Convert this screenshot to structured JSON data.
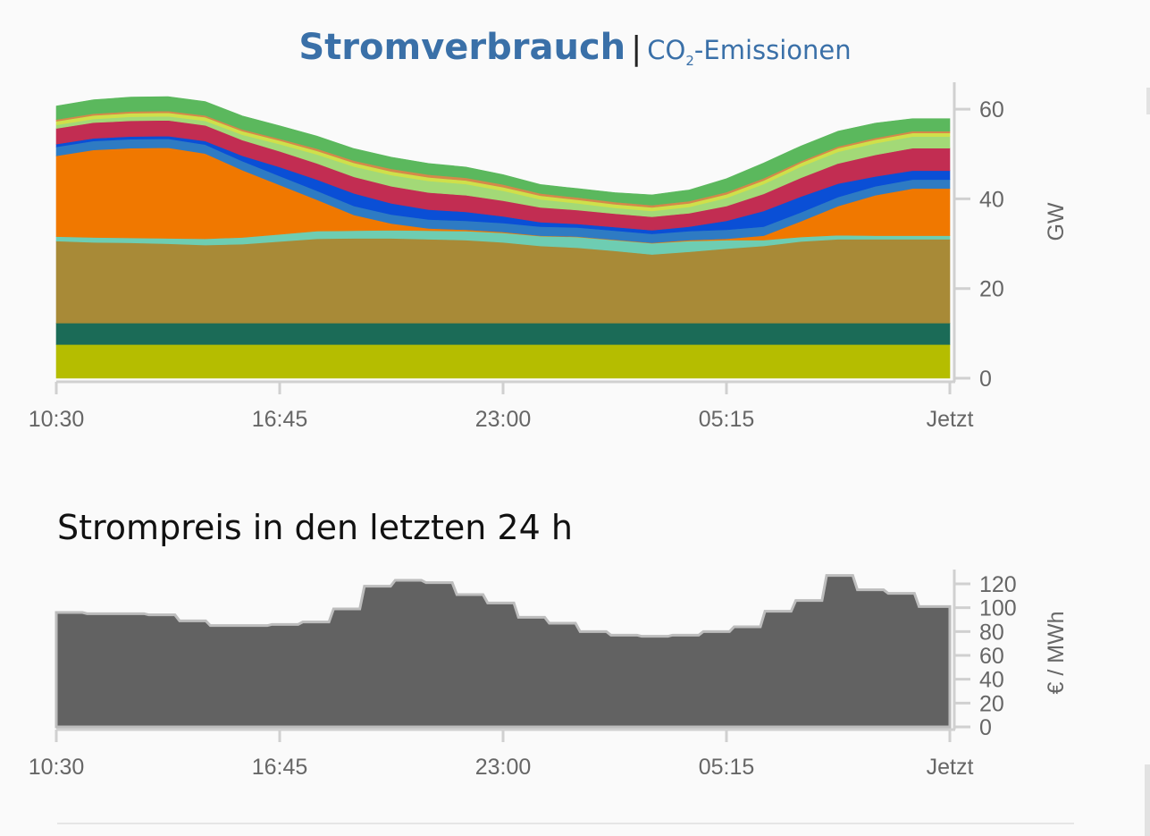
{
  "tabs": {
    "consumption_label": "Stromverbrauch",
    "separator": "|",
    "emissions_prefix": "CO",
    "emissions_sub": "2",
    "emissions_suffix": "-Emissionen"
  },
  "price_section": {
    "title": "Strompreis in den letzten 24 h"
  },
  "chart_data": [
    {
      "type": "area",
      "stacked": true,
      "title": "Stromverbrauch",
      "xlabel": "",
      "ylabel": "GW",
      "x_ticks": [
        "10:30",
        "16:45",
        "23:00",
        "05:15",
        "Jetzt"
      ],
      "y_ticks": [
        0,
        20,
        40,
        60
      ],
      "ylim": [
        0,
        66
      ],
      "grid": false,
      "legend": "none",
      "x": [
        0,
        2,
        4,
        6,
        8,
        10,
        12,
        14,
        16,
        18,
        20,
        22,
        24,
        26,
        28,
        30,
        32,
        34,
        36,
        38,
        40,
        42,
        44,
        46,
        48
      ],
      "series": [
        {
          "color": "#b5bd00",
          "values": [
            7.5,
            7.5,
            7.5,
            7.5,
            7.5,
            7.5,
            7.5,
            7.5,
            7.5,
            7.5,
            7.5,
            7.5,
            7.5,
            7.5,
            7.5,
            7.5,
            7.5,
            7.5,
            7.5,
            7.5,
            7.5,
            7.5,
            7.5,
            7.5,
            7.5
          ]
        },
        {
          "color": "#1b6b57",
          "values": [
            4.8,
            4.8,
            4.8,
            4.8,
            4.8,
            4.8,
            4.8,
            4.8,
            4.8,
            4.8,
            4.8,
            4.8,
            4.8,
            4.8,
            4.8,
            4.8,
            4.8,
            4.8,
            4.8,
            4.8,
            4.8,
            4.8,
            4.8,
            4.8,
            4.8
          ]
        },
        {
          "color": "#a88a37",
          "values": [
            18.3,
            18.0,
            17.9,
            17.7,
            17.4,
            17.6,
            18.2,
            18.8,
            18.9,
            18.9,
            18.7,
            18.5,
            18.0,
            17.2,
            16.8,
            16.1,
            15.3,
            15.9,
            16.6,
            17.2,
            18.2,
            18.7,
            18.7,
            18.7,
            18.7
          ]
        },
        {
          "color": "#6ecdb2",
          "values": [
            1.0,
            1.1,
            1.1,
            1.2,
            1.4,
            1.5,
            1.6,
            1.7,
            1.7,
            1.8,
            1.9,
            2.0,
            2.1,
            2.2,
            2.4,
            2.4,
            2.5,
            2.4,
            1.9,
            1.3,
            1.0,
            0.9,
            0.8,
            0.8,
            0.8
          ]
        },
        {
          "color": "#f07800",
          "values": [
            18.0,
            19.5,
            20.0,
            20.2,
            19.0,
            15.0,
            11.0,
            7.0,
            3.5,
            1.5,
            0.5,
            0.3,
            0.2,
            0.1,
            0.1,
            0.1,
            0.1,
            0.2,
            0.3,
            1.0,
            3.5,
            6.5,
            9.0,
            10.5,
            10.5
          ]
        },
        {
          "color": "#2e7bc3",
          "values": [
            2.0,
            2.0,
            2.0,
            2.0,
            2.0,
            2.0,
            2.0,
            2.0,
            2.0,
            2.0,
            2.0,
            2.0,
            2.0,
            2.0,
            2.0,
            2.0,
            2.0,
            2.0,
            2.0,
            2.0,
            2.0,
            2.0,
            2.0,
            2.0,
            2.0
          ]
        },
        {
          "color": "#0a4fd6",
          "values": [
            0.6,
            0.6,
            0.6,
            0.6,
            0.8,
            1.2,
            2.0,
            2.5,
            2.8,
            2.5,
            2.2,
            2.0,
            1.5,
            1.0,
            0.8,
            0.8,
            0.8,
            1.0,
            2.0,
            3.5,
            3.5,
            3.0,
            2.2,
            2.0,
            2.0
          ]
        },
        {
          "color": "#c22d52",
          "values": [
            3.5,
            3.5,
            3.5,
            3.5,
            3.5,
            3.5,
            3.5,
            3.6,
            3.7,
            3.8,
            3.8,
            3.7,
            3.5,
            3.3,
            3.1,
            3.0,
            3.0,
            3.0,
            3.3,
            3.8,
            4.2,
            4.5,
            4.8,
            5.0,
            5.0
          ]
        },
        {
          "color": "#a3d977",
          "values": [
            0.8,
            0.8,
            0.9,
            0.9,
            1.0,
            1.2,
            1.6,
            2.0,
            2.3,
            2.5,
            2.6,
            2.5,
            2.2,
            1.8,
            1.5,
            1.3,
            1.3,
            1.4,
            1.8,
            2.2,
            2.5,
            2.6,
            2.6,
            2.6,
            2.6
          ]
        },
        {
          "color": "#cfe04a",
          "values": [
            0.8,
            0.8,
            0.8,
            0.8,
            0.8,
            0.8,
            0.8,
            0.8,
            0.8,
            0.8,
            0.8,
            0.8,
            0.8,
            0.8,
            0.8,
            0.8,
            0.8,
            0.8,
            0.8,
            0.8,
            0.8,
            0.8,
            0.8,
            0.8,
            0.8
          ]
        },
        {
          "color": "#d4894a",
          "values": [
            0.4,
            0.4,
            0.4,
            0.4,
            0.4,
            0.4,
            0.4,
            0.5,
            0.5,
            0.6,
            0.6,
            0.6,
            0.6,
            0.5,
            0.5,
            0.5,
            0.5,
            0.5,
            0.5,
            0.5,
            0.4,
            0.4,
            0.4,
            0.4,
            0.4
          ]
        },
        {
          "color": "#5bb85d",
          "values": [
            3.0,
            3.1,
            3.2,
            3.2,
            3.1,
            3.0,
            2.9,
            2.8,
            2.7,
            2.6,
            2.5,
            2.4,
            2.2,
            2.0,
            2.0,
            2.1,
            2.3,
            2.5,
            3.0,
            3.4,
            3.4,
            3.4,
            3.3,
            2.8,
            2.8
          ]
        }
      ]
    },
    {
      "type": "area",
      "step": true,
      "title": "Strompreis in den letzten 24 h",
      "xlabel": "",
      "ylabel": "€ / MWh",
      "x_ticks": [
        "10:30",
        "16:45",
        "23:00",
        "05:15",
        "Jetzt"
      ],
      "y_ticks": [
        0,
        20,
        40,
        60,
        80,
        100,
        120
      ],
      "ylim": [
        0,
        132
      ],
      "grid": false,
      "legend": "none",
      "color": "#626262",
      "values": [
        96,
        95,
        95,
        94,
        89,
        85,
        85,
        86,
        88,
        99,
        118,
        123,
        121,
        111,
        104,
        92,
        87,
        80,
        77,
        76,
        77,
        80,
        84,
        97,
        106,
        127,
        115,
        112,
        101
      ]
    }
  ]
}
